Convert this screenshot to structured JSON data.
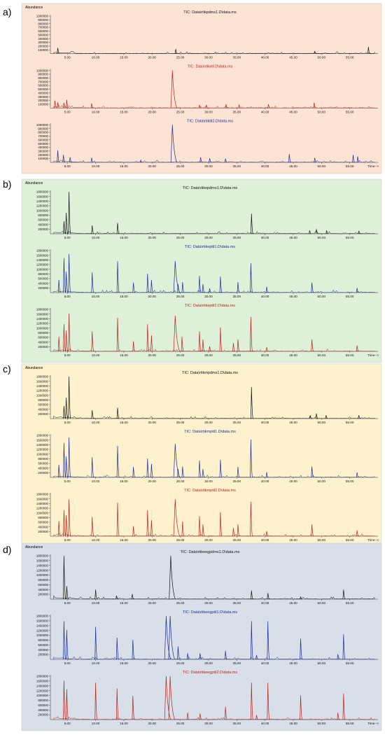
{
  "colors": {
    "panel_a": "#fde3d3",
    "panel_b": "#dff0d8",
    "panel_c": "#fdf2cd",
    "panel_d": "#d8dfe8",
    "trace_black": "#111111",
    "trace_red": "#b8201c",
    "trace_blue": "#1c2a9a"
  },
  "chart_data": [
    {
      "type": "line",
      "panel": "a)",
      "abundance_label": "Abundance",
      "time_label": "Time-->",
      "series": [
        {
          "title": "TIC: Data\\rtikpdms1.D\\data.ms",
          "color": "black",
          "yticks": [
            "1000000",
            "900000",
            "800000",
            "700000",
            "600000",
            "500000",
            "400000",
            "300000",
            "200000",
            "100000"
          ],
          "peaks": [
            [
              3.3,
              15
            ],
            [
              24.2,
              12
            ],
            [
              48.8,
              6
            ],
            [
              58.3,
              18
            ]
          ]
        },
        {
          "title": "TIC: Data\\rtikrtil.D\\data.ms",
          "color": "red",
          "yticks": [
            "1000000",
            "900000",
            "800000",
            "700000",
            "600000",
            "500000",
            "400000",
            "300000",
            "200000",
            "100000"
          ],
          "peaks": [
            [
              2.8,
              20
            ],
            [
              3.3,
              15
            ],
            [
              4.4,
              14
            ],
            [
              4.9,
              22
            ],
            [
              9.3,
              12
            ],
            [
              23.6,
              100
            ],
            [
              28.4,
              8
            ],
            [
              29.6,
              8
            ],
            [
              33.1,
              10
            ],
            [
              35.4,
              9
            ],
            [
              40.6,
              10
            ],
            [
              48.7,
              14
            ]
          ]
        },
        {
          "title": "TIC: Data\\rtiktil2.D\\data.ms",
          "color": "blue",
          "yticks": [
            "1000000",
            "900000",
            "800000",
            "700000",
            "600000",
            "500000",
            "400000",
            "300000",
            "200000",
            "100000"
          ],
          "peaks": [
            [
              3.3,
              32
            ],
            [
              4.3,
              20
            ],
            [
              5.5,
              14
            ],
            [
              9.3,
              12
            ],
            [
              18.0,
              6
            ],
            [
              23.6,
              100
            ],
            [
              28.6,
              14
            ],
            [
              30.2,
              11
            ],
            [
              33.0,
              10
            ],
            [
              44.3,
              22
            ],
            [
              48.8,
              12
            ],
            [
              55.6,
              20
            ],
            [
              56.4,
              16
            ]
          ]
        }
      ],
      "xticks": [
        "5.00",
        "10.00",
        "15.00",
        "20.00",
        "25.00",
        "30.00",
        "35.00",
        "40.00",
        "45.00",
        "50.00",
        "55.00"
      ]
    },
    {
      "type": "line",
      "panel": "b)",
      "abundance_label": "Abundance",
      "time_label": "Time-->",
      "series": [
        {
          "title": "TIC: Data\\rtikepdms1.D\\data.ms",
          "color": "black",
          "yticks": [
            "1800000",
            "1600000",
            "1400000",
            "1200000",
            "1000000",
            "800000",
            "600000",
            "400000",
            "200000"
          ],
          "peaks": [
            [
              4.4,
              30
            ],
            [
              4.8,
              50
            ],
            [
              5.3,
              100
            ],
            [
              9.4,
              20
            ],
            [
              13.9,
              26
            ],
            [
              37.6,
              48
            ],
            [
              47.9,
              8
            ],
            [
              49.1,
              11
            ],
            [
              50.9,
              8
            ],
            [
              56.6,
              7
            ]
          ]
        },
        {
          "title": "TIC: Data\\rtikeptil1.D\\data.ms",
          "color": "blue",
          "yticks": [
            "1800000",
            "1600000",
            "1400000",
            "1200000",
            "1000000",
            "800000",
            "600000",
            "400000",
            "200000"
          ],
          "peaks": [
            [
              3.5,
              30
            ],
            [
              4.4,
              82
            ],
            [
              4.8,
              50
            ],
            [
              5.3,
              92
            ],
            [
              9.4,
              48
            ],
            [
              13.9,
              75
            ],
            [
              16.7,
              24
            ],
            [
              19.2,
              45
            ],
            [
              19.9,
              30
            ],
            [
              24.1,
              75
            ],
            [
              24.6,
              20
            ],
            [
              25.4,
              25
            ],
            [
              28.4,
              40
            ],
            [
              29.0,
              20
            ],
            [
              30.2,
              10
            ],
            [
              32.1,
              38
            ],
            [
              35.2,
              25
            ],
            [
              37.5,
              70
            ],
            [
              40.3,
              14
            ],
            [
              48.3,
              24
            ],
            [
              56.3,
              11
            ]
          ]
        },
        {
          "title": "TIC: Data\\rtikeptil2.D\\data.ms",
          "color": "red",
          "yticks": [
            "1800000",
            "1600000",
            "1400000",
            "1200000",
            "1000000",
            "800000",
            "600000",
            "400000",
            "200000"
          ],
          "peaks": [
            [
              3.5,
              35
            ],
            [
              4.4,
              65
            ],
            [
              4.8,
              50
            ],
            [
              5.3,
              90
            ],
            [
              9.4,
              48
            ],
            [
              13.9,
              80
            ],
            [
              16.7,
              24
            ],
            [
              19.2,
              65
            ],
            [
              19.9,
              38
            ],
            [
              24.1,
              85
            ],
            [
              25.3,
              35
            ],
            [
              28.4,
              48
            ],
            [
              29.0,
              28
            ],
            [
              30.2,
              12
            ],
            [
              32.1,
              57
            ],
            [
              34.4,
              20
            ],
            [
              35.2,
              28
            ],
            [
              37.5,
              82
            ],
            [
              40.3,
              10
            ],
            [
              48.3,
              28
            ],
            [
              56.3,
              14
            ]
          ]
        }
      ],
      "xticks": [
        "5.00",
        "10.00",
        "15.00",
        "20.00",
        "25.00",
        "30.00",
        "35.00",
        "40.00",
        "45.00",
        "50.00",
        "55.00"
      ]
    },
    {
      "type": "line",
      "panel": "c)",
      "abundance_label": "Abundance",
      "time_label": "Time-->",
      "series": [
        {
          "title": "TIC: Data\\rtikmpdms1.D\\data.ms",
          "color": "black",
          "yticks": [
            "1800000",
            "1600000",
            "1400000",
            "1200000",
            "1000000",
            "800000",
            "600000",
            "400000",
            "200000"
          ],
          "peaks": [
            [
              4.4,
              30
            ],
            [
              4.8,
              50
            ],
            [
              5.3,
              100
            ],
            [
              9.4,
              20
            ],
            [
              13.9,
              26
            ],
            [
              37.6,
              75
            ],
            [
              48.0,
              8
            ],
            [
              49.1,
              12
            ],
            [
              50.8,
              8
            ],
            [
              56.6,
              8
            ]
          ]
        },
        {
          "title": "TIC: Data\\rtikmptil1.D\\data.ms",
          "color": "blue",
          "yticks": [
            "1800000",
            "1600000",
            "1400000",
            "1200000",
            "1000000",
            "800000",
            "600000",
            "400000",
            "200000"
          ],
          "peaks": [
            [
              3.5,
              30
            ],
            [
              4.4,
              82
            ],
            [
              4.8,
              50
            ],
            [
              5.3,
              95
            ],
            [
              9.4,
              48
            ],
            [
              13.9,
              75
            ],
            [
              16.7,
              25
            ],
            [
              19.2,
              45
            ],
            [
              19.9,
              32
            ],
            [
              24.1,
              80
            ],
            [
              24.6,
              20
            ],
            [
              25.4,
              26
            ],
            [
              28.4,
              40
            ],
            [
              29.0,
              20
            ],
            [
              32.1,
              42
            ],
            [
              35.2,
              25
            ],
            [
              37.5,
              90
            ],
            [
              40.3,
              12
            ],
            [
              48.3,
              26
            ],
            [
              56.3,
              12
            ]
          ]
        },
        {
          "title": "TIC: Data\\rtikmptil2.D\\data.ms",
          "color": "red",
          "yticks": [
            "1800000",
            "1600000",
            "1400000",
            "1200000",
            "1000000",
            "800000",
            "600000",
            "400000",
            "200000"
          ],
          "peaks": [
            [
              3.5,
              36
            ],
            [
              4.4,
              62
            ],
            [
              4.8,
              50
            ],
            [
              5.3,
              88
            ],
            [
              9.4,
              46
            ],
            [
              13.9,
              80
            ],
            [
              16.7,
              24
            ],
            [
              19.2,
              62
            ],
            [
              19.9,
              38
            ],
            [
              24.1,
              88
            ],
            [
              25.4,
              35
            ],
            [
              28.4,
              48
            ],
            [
              29.0,
              28
            ],
            [
              32.1,
              57
            ],
            [
              34.4,
              20
            ],
            [
              35.2,
              28
            ],
            [
              37.5,
              82
            ],
            [
              40.3,
              12
            ],
            [
              48.3,
              28
            ],
            [
              56.3,
              14
            ]
          ]
        }
      ],
      "xticks": [
        "5.00",
        "10.00",
        "15.00",
        "20.00",
        "25.00",
        "30.00",
        "35.00",
        "40.00",
        "45.00",
        "50.00",
        "55.00"
      ]
    },
    {
      "type": "line",
      "panel": "d)",
      "abundance_label": "Abundance",
      "time_label": "Time-->",
      "series": [
        {
          "title": "TIC: Data\\rtikeegpdms1.D\\data.ms",
          "color": "black",
          "yticks": [
            "1800000",
            "1600000",
            "1400000",
            "1200000",
            "1000000",
            "800000",
            "600000",
            "400000",
            "200000"
          ],
          "peaks": [
            [
              4.4,
              100
            ],
            [
              4.9,
              30
            ],
            [
              10.0,
              22
            ],
            [
              13.7,
              8
            ],
            [
              16.5,
              12
            ],
            [
              23.3,
              100
            ],
            [
              37.6,
              20
            ],
            [
              40.5,
              14
            ],
            [
              46.3,
              6
            ],
            [
              53.9,
              22
            ]
          ]
        },
        {
          "title": "TIC: Data\\rtikeegptil1.D\\data.ms",
          "color": "blue",
          "yticks": [
            "1800000",
            "1600000",
            "1400000",
            "1200000",
            "1000000",
            "800000",
            "600000",
            "400000",
            "200000"
          ],
          "peaks": [
            [
              4.4,
              88
            ],
            [
              4.9,
              68
            ],
            [
              10.0,
              75
            ],
            [
              13.8,
              50
            ],
            [
              16.6,
              45
            ],
            [
              22.5,
              100
            ],
            [
              23.2,
              100
            ],
            [
              24.6,
              30
            ],
            [
              26.3,
              14
            ],
            [
              28.5,
              14
            ],
            [
              33.0,
              20
            ],
            [
              37.6,
              88
            ],
            [
              38.5,
              10
            ],
            [
              40.5,
              88
            ],
            [
              46.3,
              48
            ],
            [
              52.9,
              12
            ],
            [
              53.9,
              58
            ]
          ]
        },
        {
          "title": "TIC: Data\\rtikeegptil2.D\\data.ms",
          "color": "red",
          "yticks": [
            "1800000",
            "1600000",
            "1400000",
            "1200000",
            "1000000",
            "800000",
            "600000",
            "400000",
            "200000"
          ],
          "peaks": [
            [
              4.4,
              90
            ],
            [
              4.9,
              70
            ],
            [
              10.0,
              85
            ],
            [
              13.8,
              72
            ],
            [
              16.6,
              55
            ],
            [
              22.5,
              100
            ],
            [
              23.2,
              100
            ],
            [
              26.3,
              16
            ],
            [
              28.5,
              14
            ],
            [
              33.0,
              30
            ],
            [
              37.6,
              85
            ],
            [
              38.5,
              10
            ],
            [
              40.5,
              85
            ],
            [
              46.3,
              56
            ],
            [
              52.9,
              16
            ],
            [
              53.9,
              60
            ]
          ]
        }
      ],
      "xticks": [
        "5.00",
        "10.00",
        "15.00",
        "20.00",
        "25.00",
        "30.00",
        "35.00",
        "40.00",
        "45.00",
        "50.00",
        "55.00"
      ]
    }
  ]
}
